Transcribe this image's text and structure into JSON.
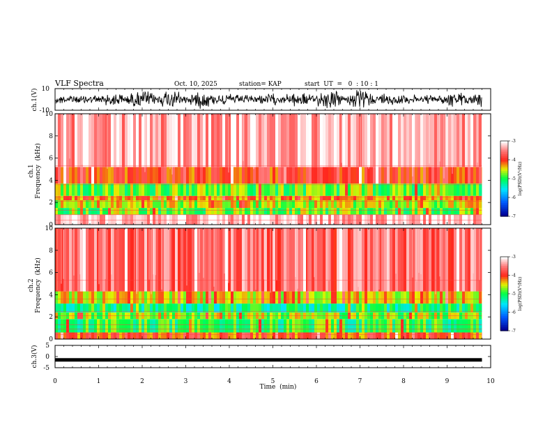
{
  "header": {
    "title": "VLF Spectra",
    "date": "Oct. 10, 2025",
    "station": "station= KAP",
    "start": "start  UT  =   0  : 10 : 1"
  },
  "colorbar": {
    "label": "log(PSD)(V²/Hz)",
    "ticks": [
      "-3",
      "-4",
      "-5",
      "-6",
      "-7"
    ]
  },
  "colors": {
    "low": "#0000a0",
    "mid_low": "#00d8ff",
    "mid": "#00ff40",
    "mid_high": "#f0f000",
    "high": "#ff2020",
    "top": "#ffffff"
  },
  "chart_data": [
    {
      "type": "line",
      "name": "ch1-waveform",
      "ylabel": "ch.1(V)",
      "ylim": [
        -10,
        10
      ],
      "yticks": [
        "10",
        "-10"
      ],
      "xlim": [
        0,
        10
      ],
      "note_values": "noisy waveform spanning roughly -9 to 9 V over 0 to 9.8 min"
    },
    {
      "type": "heatmap",
      "name": "ch1-spectrogram",
      "ylabel": "ch.1\nFrequency (kHz)",
      "ylabel_line1": "ch.1",
      "ylabel_line2": "Frequency  (kHz)",
      "ylim": [
        0,
        10
      ],
      "yticks": [
        "0",
        "2",
        "4",
        "6",
        "8",
        "10"
      ],
      "xlim": [
        0,
        10
      ],
      "data_end_min": 9.8,
      "bands": [
        {
          "from_khz": 0.0,
          "to_khz": 0.9,
          "log_psd": -3.2
        },
        {
          "from_khz": 0.9,
          "to_khz": 1.5,
          "log_psd": -4.8
        },
        {
          "from_khz": 1.5,
          "to_khz": 2.2,
          "log_psd": -4.6
        },
        {
          "from_khz": 2.2,
          "to_khz": 2.6,
          "log_psd": -4.2
        },
        {
          "from_khz": 2.6,
          "to_khz": 3.7,
          "log_psd": -4.8
        },
        {
          "from_khz": 3.7,
          "to_khz": 5.2,
          "log_psd": -3.9
        },
        {
          "from_khz": 5.2,
          "to_khz": 10.0,
          "log_psd": -3.3
        }
      ]
    },
    {
      "type": "heatmap",
      "name": "ch2-spectrogram",
      "ylabel_line1": "ch.2",
      "ylabel_line2": "Frequency  (kHz)",
      "ylim": [
        0,
        10
      ],
      "yticks": [
        "0",
        "2",
        "4",
        "6",
        "8",
        "10"
      ],
      "xlim": [
        0,
        10
      ],
      "data_end_min": 9.8,
      "bands": [
        {
          "from_khz": 0.0,
          "to_khz": 0.6,
          "log_psd": -4.0
        },
        {
          "from_khz": 0.6,
          "to_khz": 1.8,
          "log_psd": -5.0
        },
        {
          "from_khz": 1.8,
          "to_khz": 2.4,
          "log_psd": -4.7
        },
        {
          "from_khz": 2.4,
          "to_khz": 3.2,
          "log_psd": -5.2
        },
        {
          "from_khz": 3.2,
          "to_khz": 4.3,
          "log_psd": -4.4
        },
        {
          "from_khz": 4.3,
          "to_khz": 10.0,
          "log_psd": -3.6
        }
      ]
    },
    {
      "type": "line",
      "name": "ch3-waveform",
      "ylabel": "ch.3(V)",
      "ylim": [
        -5,
        5
      ],
      "yticks": [
        "5",
        "0",
        "-5"
      ],
      "xlim": [
        0,
        10
      ],
      "xlabel": "Time  (min)",
      "xticks": [
        "0",
        "1",
        "2",
        "3",
        "4",
        "5",
        "6",
        "7",
        "8",
        "9",
        "10"
      ],
      "level_v": -1.5,
      "data_end_min": 9.8
    }
  ]
}
